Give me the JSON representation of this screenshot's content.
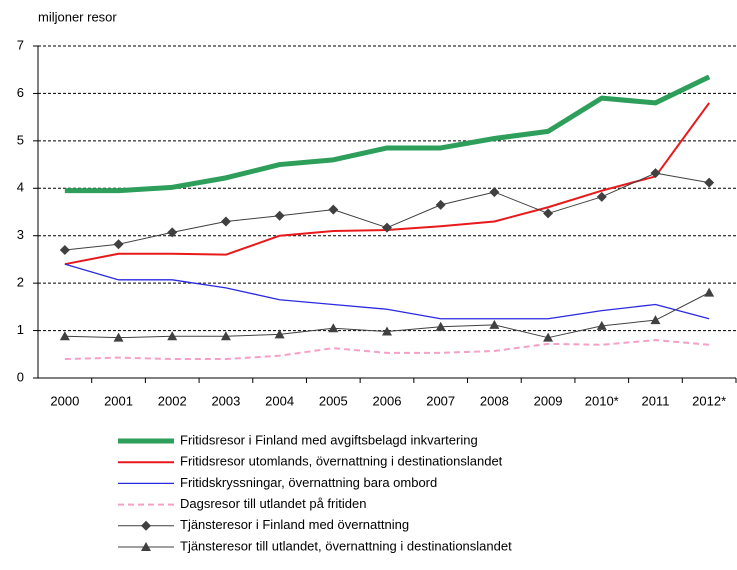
{
  "chart_data": {
    "type": "line",
    "y_label": "miljoner resor",
    "categories": [
      "2000",
      "2001",
      "2002",
      "2003",
      "2004",
      "2005",
      "2006",
      "2007",
      "2008",
      "2009",
      "2010*",
      "2011",
      "2012*"
    ],
    "ylim": [
      0,
      7
    ],
    "yticks": [
      0,
      1,
      2,
      3,
      4,
      5,
      6,
      7
    ],
    "grid": true,
    "legend": "bottom",
    "series": [
      {
        "name": "Fritidsresor i Finland med avgiftsbelagd inkvartering",
        "color": "#2e9e5b",
        "width": 5,
        "values": [
          3.95,
          3.95,
          4.02,
          4.22,
          4.5,
          4.6,
          4.85,
          4.85,
          5.05,
          5.2,
          5.9,
          5.8,
          6.35
        ]
      },
      {
        "name": "Fritidsresor utomlands, övernattning i destinationslandet",
        "color": "#e8191b",
        "width": 2,
        "values": [
          2.4,
          2.62,
          2.62,
          2.6,
          3.0,
          3.1,
          3.12,
          3.2,
          3.3,
          3.6,
          3.95,
          4.25,
          5.8
        ]
      },
      {
        "name": "Fritidskryssningar, övernattning bara ombord",
        "color": "#2a2ae0",
        "width": 1.3,
        "values": [
          2.4,
          2.07,
          2.07,
          1.9,
          1.65,
          1.55,
          1.45,
          1.25,
          1.25,
          1.25,
          1.42,
          1.55,
          1.25
        ]
      },
      {
        "name": "Dagsresor till utlandet på fritiden",
        "color": "#f4a0c8",
        "width": 2,
        "dash": true,
        "values": [
          0.4,
          0.43,
          0.4,
          0.4,
          0.47,
          0.63,
          0.53,
          0.53,
          0.57,
          0.72,
          0.7,
          0.8,
          0.7
        ]
      },
      {
        "name": "Tjänsteresor i Finland med övernattning",
        "color": "#404040",
        "width": 1,
        "marker": "diamond",
        "values": [
          2.7,
          2.82,
          3.07,
          3.3,
          3.42,
          3.55,
          3.17,
          3.65,
          3.92,
          3.47,
          3.82,
          4.32,
          4.12
        ]
      },
      {
        "name": "Tjänsteresor till utlandet, övernattning i destinationslandet",
        "color": "#404040",
        "width": 1,
        "marker": "triangle",
        "values": [
          0.88,
          0.85,
          0.88,
          0.88,
          0.92,
          1.05,
          0.98,
          1.08,
          1.12,
          0.85,
          1.1,
          1.22,
          1.8
        ]
      }
    ]
  }
}
